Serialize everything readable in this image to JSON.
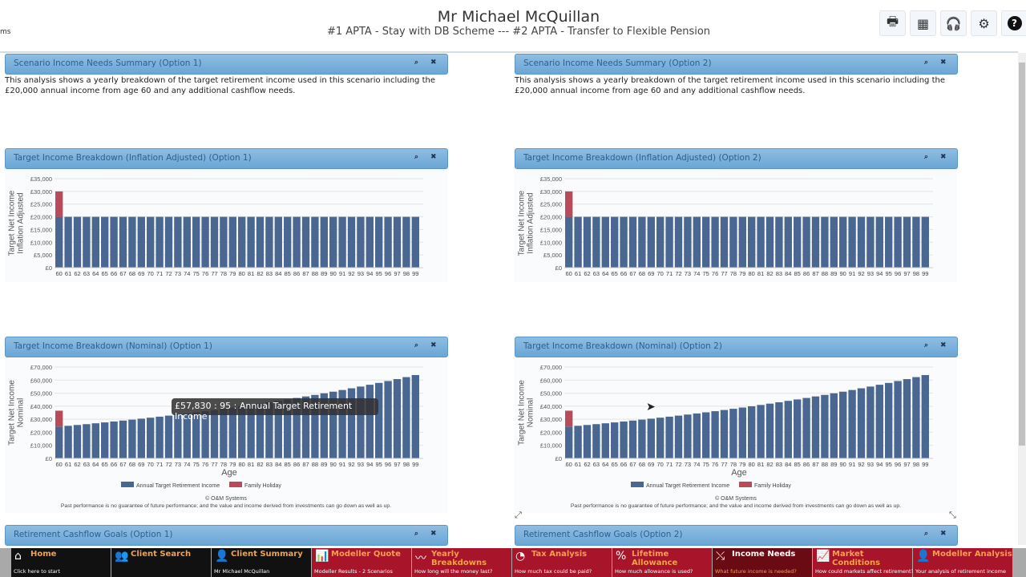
{
  "header": {
    "client_name": "Mr Michael McQuillan",
    "scenarios": "#1 APTA - Stay with DB Scheme --- #2 APTA - Transfer to Flexible Pension",
    "left_fragment": "ms",
    "toolbar": [
      {
        "icon": "printer-icon",
        "glyph": "🖶"
      },
      {
        "icon": "calculator-icon",
        "glyph": "▦"
      },
      {
        "icon": "headset-icon",
        "glyph": "🎧"
      },
      {
        "icon": "gear-icon",
        "glyph": "⚙"
      },
      {
        "icon": "help-icon",
        "glyph": "?"
      }
    ]
  },
  "panels": {
    "summary1": {
      "title": "Scenario Income Needs Summary (Option 1)",
      "text": "This analysis shows a yearly breakdown of the target retirement income used in this scenario including the £20,000 annual income from age 60 and any additional cashflow needs."
    },
    "summary2": {
      "title": "Scenario Income Needs Summary (Option 2)",
      "text": "This analysis shows a yearly breakdown of the target retirement income used in this scenario including the £20,000 annual income from age 60 and any additional cashflow needs."
    },
    "infl1": {
      "title": "Target Income Breakdown (Inflation Adjusted) (Option 1)"
    },
    "infl2": {
      "title": "Target Income Breakdown (Inflation Adjusted) (Option 2)"
    },
    "nom1": {
      "title": "Target Income Breakdown (Nominal) (Option 1)"
    },
    "nom2": {
      "title": "Target Income Breakdown (Nominal) (Option 2)"
    },
    "cash1": {
      "title": "Retirement Cashflow Goals (Option 1)"
    },
    "cash2": {
      "title": "Retirement Cashflow Goals (Option 2)"
    },
    "icons": {
      "zoom": "⌕",
      "close": "✖"
    }
  },
  "tooltip": "£57,830 : 95 : Annual Target Retirement Income",
  "footer": {
    "copyright": "© O&M Systems",
    "disclaimer": "Past performance is no guarantee of future performance; and the value and income derived from investments can go down as well as up."
  },
  "chart_data": [
    {
      "type": "bar",
      "stacked": true,
      "ylabel": [
        "Target Net Income",
        "Inflation Adjusted"
      ],
      "xlabel": "",
      "ylim": [
        0,
        35000
      ],
      "yticks": [
        "£0",
        "£5,000",
        "£10,000",
        "£15,000",
        "£20,000",
        "£25,000",
        "£30,000",
        "£35,000"
      ],
      "categories": [
        "60",
        "61",
        "62",
        "63",
        "64",
        "65",
        "66",
        "67",
        "68",
        "69",
        "70",
        "71",
        "72",
        "73",
        "74",
        "75",
        "76",
        "77",
        "78",
        "79",
        "80",
        "81",
        "82",
        "83",
        "84",
        "85",
        "86",
        "87",
        "88",
        "89",
        "90",
        "91",
        "92",
        "93",
        "94",
        "95",
        "96",
        "97",
        "98",
        "99"
      ],
      "series": [
        {
          "name": "Annual Target Retirement Income",
          "color": "#4a6791",
          "values": [
            20000,
            20000,
            20000,
            20000,
            20000,
            20000,
            20000,
            20000,
            20000,
            20000,
            20000,
            20000,
            20000,
            20000,
            20000,
            20000,
            20000,
            20000,
            20000,
            20000,
            20000,
            20000,
            20000,
            20000,
            20000,
            20000,
            20000,
            20000,
            20000,
            20000,
            20000,
            20000,
            20000,
            20000,
            20000,
            20000,
            20000,
            20000,
            20000,
            20000
          ]
        },
        {
          "name": "Family Holiday",
          "color": "#b94a5a",
          "values": [
            10000,
            0,
            0,
            0,
            0,
            0,
            0,
            0,
            0,
            0,
            0,
            0,
            0,
            0,
            0,
            0,
            0,
            0,
            0,
            0,
            0,
            0,
            0,
            0,
            0,
            0,
            0,
            0,
            0,
            0,
            0,
            0,
            0,
            0,
            0,
            0,
            0,
            0,
            0,
            0
          ]
        }
      ],
      "legend": false
    },
    {
      "type": "bar",
      "stacked": true,
      "ylabel": [
        "Target Net Income",
        "Inflation Adjusted"
      ],
      "xlabel": "",
      "ylim": [
        0,
        35000
      ],
      "yticks": [
        "£0",
        "£5,000",
        "£10,000",
        "£15,000",
        "£20,000",
        "£25,000",
        "£30,000",
        "£35,000"
      ],
      "categories": [
        "60",
        "61",
        "62",
        "63",
        "64",
        "65",
        "66",
        "67",
        "68",
        "69",
        "70",
        "71",
        "72",
        "73",
        "74",
        "75",
        "76",
        "77",
        "78",
        "79",
        "80",
        "81",
        "82",
        "83",
        "84",
        "85",
        "86",
        "87",
        "88",
        "89",
        "90",
        "91",
        "92",
        "93",
        "94",
        "95",
        "96",
        "97",
        "98",
        "99"
      ],
      "series": [
        {
          "name": "Annual Target Retirement Income",
          "color": "#4a6791",
          "values": [
            20000,
            20000,
            20000,
            20000,
            20000,
            20000,
            20000,
            20000,
            20000,
            20000,
            20000,
            20000,
            20000,
            20000,
            20000,
            20000,
            20000,
            20000,
            20000,
            20000,
            20000,
            20000,
            20000,
            20000,
            20000,
            20000,
            20000,
            20000,
            20000,
            20000,
            20000,
            20000,
            20000,
            20000,
            20000,
            20000,
            20000,
            20000,
            20000,
            20000
          ]
        },
        {
          "name": "Family Holiday",
          "color": "#b94a5a",
          "values": [
            10000,
            0,
            0,
            0,
            0,
            0,
            0,
            0,
            0,
            0,
            0,
            0,
            0,
            0,
            0,
            0,
            0,
            0,
            0,
            0,
            0,
            0,
            0,
            0,
            0,
            0,
            0,
            0,
            0,
            0,
            0,
            0,
            0,
            0,
            0,
            0,
            0,
            0,
            0,
            0
          ]
        }
      ],
      "legend": false
    },
    {
      "type": "bar",
      "stacked": true,
      "ylabel": [
        "Target Net Income",
        "Nominal"
      ],
      "xlabel": "Age",
      "ylim": [
        0,
        70000
      ],
      "yticks": [
        "£0",
        "£10,000",
        "£20,000",
        "£30,000",
        "£40,000",
        "£50,000",
        "£60,000",
        "£70,000"
      ],
      "categories": [
        "60",
        "61",
        "62",
        "63",
        "64",
        "65",
        "66",
        "67",
        "68",
        "69",
        "70",
        "71",
        "72",
        "73",
        "74",
        "75",
        "76",
        "77",
        "78",
        "79",
        "80",
        "81",
        "82",
        "83",
        "84",
        "85",
        "86",
        "87",
        "88",
        "89",
        "90",
        "91",
        "92",
        "93",
        "94",
        "95",
        "96",
        "97",
        "98",
        "99"
      ],
      "series": [
        {
          "name": "Annual Target Retirement Income",
          "color": "#4a6791",
          "values": [
            24370,
            24979,
            25604,
            26244,
            26900,
            27572,
            28262,
            28968,
            29692,
            30435,
            31196,
            31976,
            32775,
            33594,
            34434,
            35295,
            36177,
            37082,
            38009,
            38959,
            39933,
            40932,
            41955,
            43004,
            44079,
            45181,
            46310,
            47468,
            48655,
            49871,
            51118,
            52396,
            53706,
            55048,
            56425,
            57830,
            59278,
            60760,
            62279,
            63836
          ]
        },
        {
          "name": "Family Holiday",
          "color": "#b94a5a",
          "values": [
            12185,
            0,
            0,
            0,
            0,
            0,
            0,
            0,
            0,
            0,
            0,
            0,
            0,
            0,
            0,
            0,
            0,
            0,
            0,
            0,
            0,
            0,
            0,
            0,
            0,
            0,
            0,
            0,
            0,
            0,
            0,
            0,
            0,
            0,
            0,
            0,
            0,
            0,
            0,
            0
          ]
        }
      ],
      "legend": "bottom"
    },
    {
      "type": "bar",
      "stacked": true,
      "ylabel": [
        "Target Net Income",
        "Nominal"
      ],
      "xlabel": "Age",
      "ylim": [
        0,
        70000
      ],
      "yticks": [
        "£0",
        "£10,000",
        "£20,000",
        "£30,000",
        "£40,000",
        "£50,000",
        "£60,000",
        "£70,000"
      ],
      "categories": [
        "60",
        "61",
        "62",
        "63",
        "64",
        "65",
        "66",
        "67",
        "68",
        "69",
        "70",
        "71",
        "72",
        "73",
        "74",
        "75",
        "76",
        "77",
        "78",
        "79",
        "80",
        "81",
        "82",
        "83",
        "84",
        "85",
        "86",
        "87",
        "88",
        "89",
        "90",
        "91",
        "92",
        "93",
        "94",
        "95",
        "96",
        "97",
        "98",
        "99"
      ],
      "series": [
        {
          "name": "Annual Target Retirement Income",
          "color": "#4a6791",
          "values": [
            24370,
            24979,
            25604,
            26244,
            26900,
            27572,
            28262,
            28968,
            29692,
            30435,
            31196,
            31976,
            32775,
            33594,
            34434,
            35295,
            36177,
            37082,
            38009,
            38959,
            39933,
            40932,
            41955,
            43004,
            44079,
            45181,
            46310,
            47468,
            48655,
            49871,
            51118,
            52396,
            53706,
            55048,
            56425,
            57830,
            59278,
            60760,
            62279,
            63836
          ]
        },
        {
          "name": "Family Holiday",
          "color": "#b94a5a",
          "values": [
            12185,
            0,
            0,
            0,
            0,
            0,
            0,
            0,
            0,
            0,
            0,
            0,
            0,
            0,
            0,
            0,
            0,
            0,
            0,
            0,
            0,
            0,
            0,
            0,
            0,
            0,
            0,
            0,
            0,
            0,
            0,
            0,
            0,
            0,
            0,
            0,
            0,
            0,
            0,
            0
          ]
        }
      ],
      "legend": "bottom"
    }
  ],
  "nav": [
    {
      "title": "Home",
      "sub": "Click here to start",
      "icon": "home-icon",
      "glyph": "⌂",
      "bg": "#111111"
    },
    {
      "title": "Client Search",
      "sub": "",
      "icon": "people-icon",
      "glyph": "👥",
      "bg": "#111111"
    },
    {
      "title": "Client Summary",
      "sub": "Mr Michael McQuillan",
      "icon": "person-icon",
      "glyph": "👤",
      "bg": "#111111"
    },
    {
      "title": "Modeller Quote",
      "sub": "Modeller Results - 2 Scenarios",
      "icon": "bar-chart-icon",
      "glyph": "📊",
      "bg": "#a8152a"
    },
    {
      "title": "Yearly Breakdowns",
      "sub": "How long will the money last?",
      "icon": "line-chart-icon",
      "glyph": "〰",
      "bg": "#a8152a"
    },
    {
      "title": "Tax Analysis",
      "sub": "How much tax could be paid?",
      "icon": "pie-chart-icon",
      "glyph": "◔",
      "bg": "#a8152a"
    },
    {
      "title": "Lifetime Allowance",
      "sub": "How much allowance is used?",
      "icon": "percent-icon",
      "glyph": "%",
      "bg": "#a8152a"
    },
    {
      "title": "Income Needs",
      "sub": "What future income is needed?",
      "icon": "trend-icon",
      "glyph": "⤯",
      "bg": "#6a0a12",
      "active": true
    },
    {
      "title": "Market Conditions",
      "sub": "How could markets affect retirement?",
      "icon": "candlestick-icon",
      "glyph": "📈",
      "bg": "#a8152a"
    },
    {
      "title": "Modeller Analysis",
      "sub": "Your analysis of retirement income",
      "icon": "user-gear-icon",
      "glyph": "👤",
      "bg": "#a8152a"
    }
  ]
}
